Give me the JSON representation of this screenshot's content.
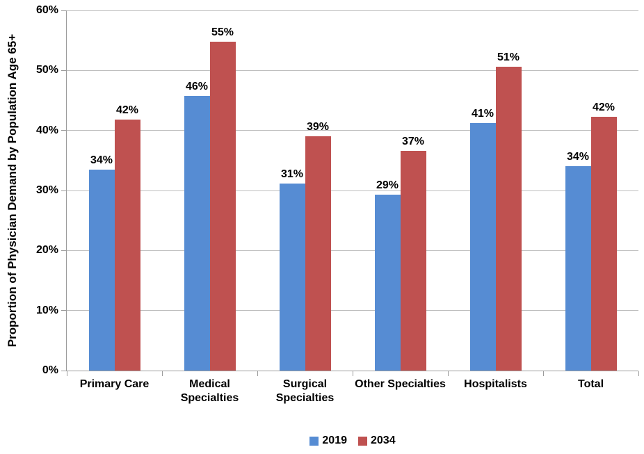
{
  "chart_data": {
    "type": "bar",
    "title": "",
    "xlabel": "",
    "ylabel": "Proportion of Physician Demand by Population Age 65+",
    "ylim": [
      0,
      60
    ],
    "ytick_step": 10,
    "ytick_labels": [
      "0%",
      "10%",
      "20%",
      "30%",
      "40%",
      "50%",
      "60%"
    ],
    "grid": true,
    "legend_position": "bottom-center",
    "categories": [
      "Primary Care",
      "Medical\nSpecialties",
      "Surgical\nSpecialties",
      "Other Specialties",
      "Hospitalists",
      "Total"
    ],
    "series": [
      {
        "name": "2019",
        "color": "#568CD3",
        "values": [
          33.5,
          45.8,
          31.2,
          29.3,
          41.2,
          34.1
        ],
        "labels": [
          "34%",
          "46%",
          "31%",
          "29%",
          "41%",
          "34%"
        ]
      },
      {
        "name": "2034",
        "color": "#BF5150",
        "values": [
          41.8,
          54.8,
          39.0,
          36.6,
          50.6,
          42.3
        ],
        "labels": [
          "42%",
          "55%",
          "39%",
          "37%",
          "51%",
          "42%"
        ]
      }
    ],
    "colors": {
      "gridline": "#BDBDBD",
      "axis": "#9B9B9B",
      "text": "#000000",
      "background": "#FFFFFF"
    }
  }
}
